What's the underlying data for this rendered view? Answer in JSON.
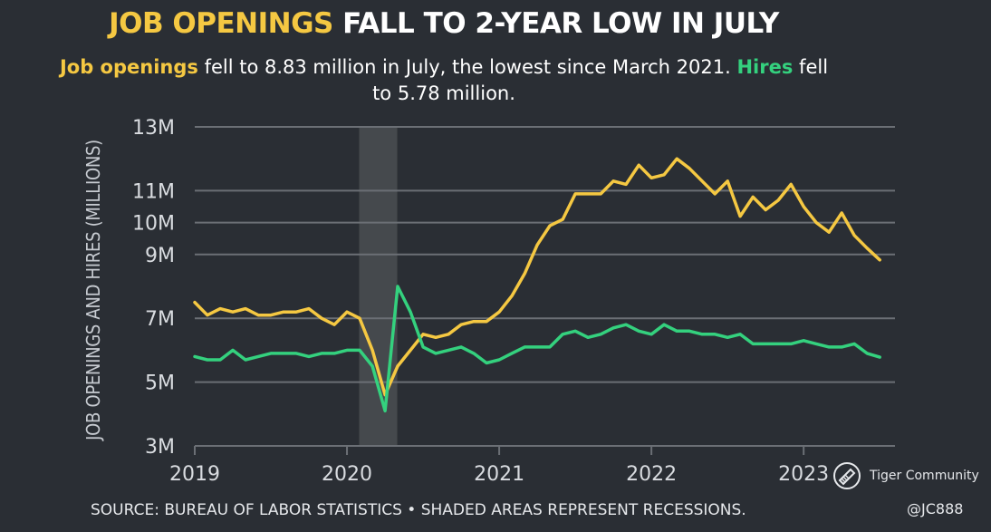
{
  "header": {
    "title_highlight": "JOB OPENINGS",
    "title_rest": "FALL TO 2-YEAR LOW IN JULY",
    "sub_openings": "Job openings",
    "sub_text1": "fell to 8.83 million in July, the lowest since March 2021.",
    "sub_hires": "Hires",
    "sub_text2": "fell to 5.78 million."
  },
  "footer": {
    "source": "SOURCE: BUREAU OF LABOR STATISTICS • SHADED AREAS REPRESENT RECESSIONS.",
    "handle": "@JC888",
    "brand": "Tiger Community"
  },
  "colors": {
    "background": "#2a2e34",
    "openings": "#f5c842",
    "hires": "#34d17e",
    "recession": "#4a4d52",
    "grid": "#6b6f75"
  },
  "chart_data": {
    "type": "line",
    "title": "JOB OPENINGS FALL TO 2-YEAR LOW IN JULY",
    "xlabel": "",
    "ylabel": "JOB OPENINGS AND HIRES (MILLIONS)",
    "xlim": [
      2019,
      2023.6
    ],
    "ylim": [
      3,
      13
    ],
    "yticks": [
      3,
      5,
      7,
      9,
      10,
      11,
      13
    ],
    "ytick_labels": [
      "3M",
      "5M",
      "7M",
      "9M",
      "10M",
      "11M",
      "13M"
    ],
    "xticks": [
      2019,
      2020,
      2021,
      2022,
      2023
    ],
    "xtick_labels": [
      "2019",
      "2020",
      "2021",
      "2022",
      "2023"
    ],
    "grid": true,
    "recession": [
      2020.08,
      2020.33
    ],
    "x": [
      2019.0,
      2019.083,
      2019.167,
      2019.25,
      2019.333,
      2019.417,
      2019.5,
      2019.583,
      2019.667,
      2019.75,
      2019.833,
      2019.917,
      2020.0,
      2020.083,
      2020.167,
      2020.25,
      2020.333,
      2020.417,
      2020.5,
      2020.583,
      2020.667,
      2020.75,
      2020.833,
      2020.917,
      2021.0,
      2021.083,
      2021.167,
      2021.25,
      2021.333,
      2021.417,
      2021.5,
      2021.583,
      2021.667,
      2021.75,
      2021.833,
      2021.917,
      2022.0,
      2022.083,
      2022.167,
      2022.25,
      2022.333,
      2022.417,
      2022.5,
      2022.583,
      2022.667,
      2022.75,
      2022.833,
      2022.917,
      2023.0,
      2023.083,
      2023.167,
      2023.25,
      2023.333,
      2023.417,
      2023.5
    ],
    "series": [
      {
        "name": "Job openings",
        "color": "#f5c842",
        "values": [
          7.5,
          7.1,
          7.3,
          7.2,
          7.3,
          7.1,
          7.1,
          7.2,
          7.2,
          7.3,
          7.0,
          6.8,
          7.2,
          7.0,
          6.0,
          4.6,
          5.5,
          6.0,
          6.5,
          6.4,
          6.5,
          6.8,
          6.9,
          6.9,
          7.2,
          7.7,
          8.4,
          9.3,
          9.9,
          10.1,
          10.9,
          10.9,
          10.9,
          11.3,
          11.2,
          11.8,
          11.4,
          11.5,
          12.0,
          11.7,
          11.3,
          10.9,
          11.3,
          10.2,
          10.8,
          10.4,
          10.7,
          11.2,
          10.5,
          10.0,
          9.7,
          10.3,
          9.6,
          9.2,
          8.83
        ]
      },
      {
        "name": "Hires",
        "color": "#34d17e",
        "values": [
          5.8,
          5.7,
          5.7,
          6.0,
          5.7,
          5.8,
          5.9,
          5.9,
          5.9,
          5.8,
          5.9,
          5.9,
          6.0,
          6.0,
          5.5,
          4.1,
          8.0,
          7.2,
          6.1,
          5.9,
          6.0,
          6.1,
          5.9,
          5.6,
          5.7,
          5.9,
          6.1,
          6.1,
          6.1,
          6.5,
          6.6,
          6.4,
          6.5,
          6.7,
          6.8,
          6.6,
          6.5,
          6.8,
          6.6,
          6.6,
          6.5,
          6.5,
          6.4,
          6.5,
          6.2,
          6.2,
          6.2,
          6.2,
          6.3,
          6.2,
          6.1,
          6.1,
          6.2,
          5.9,
          5.78
        ]
      }
    ]
  }
}
